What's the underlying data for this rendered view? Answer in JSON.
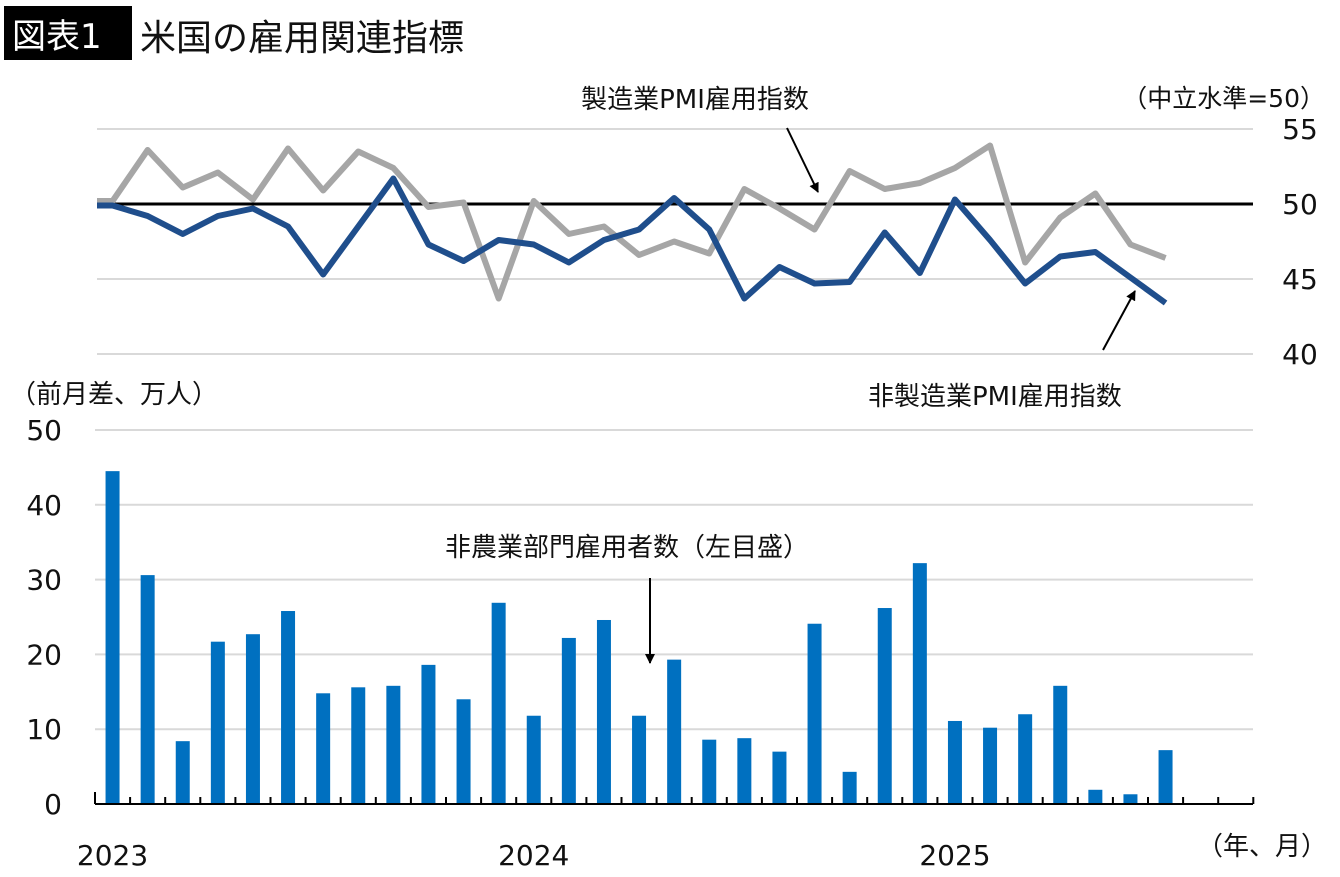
{
  "header": {
    "badge": "図表1",
    "title": "米国の雇用関連指標"
  },
  "colors": {
    "manufacturing": "#a6a6a6",
    "non_manufacturing": "#1f4e8c",
    "payrolls": "#0070c0",
    "reference_line": "#000000",
    "grid": "#d9d9d9"
  },
  "chart_data": [
    {
      "type": "line",
      "unit_label": "（中立水準=50）",
      "ylim": [
        40,
        55
      ],
      "y_ticks": [
        "55",
        "50",
        "45",
        "40"
      ],
      "y_axis_side": "right",
      "reference_line": 50,
      "grid": true,
      "x_range": [
        "2023-01",
        "2025-07"
      ],
      "series": [
        {
          "name": "製造業PMI雇用指数",
          "values": [
            50.2,
            53.6,
            51.1,
            52.1,
            50.3,
            53.7,
            50.9,
            53.5,
            52.4,
            49.8,
            50.1,
            43.7,
            50.2,
            48.0,
            48.5,
            46.6,
            47.5,
            46.7,
            51.0,
            49.7,
            48.3,
            52.2,
            51.0,
            51.4,
            52.4,
            53.9,
            46.1,
            49.1,
            50.7,
            47.3,
            46.4
          ]
        },
        {
          "name": "非製造業PMI雇用指数",
          "values": [
            49.9,
            49.2,
            48.0,
            49.2,
            49.7,
            48.5,
            45.3,
            48.5,
            51.7,
            47.3,
            46.2,
            47.6,
            47.3,
            46.1,
            47.6,
            48.3,
            50.4,
            48.3,
            43.7,
            45.8,
            44.7,
            44.8,
            48.1,
            45.4,
            50.3,
            47.6,
            44.7,
            46.5,
            46.8,
            45.1,
            43.4
          ]
        }
      ]
    },
    {
      "type": "bar",
      "unit_label": "（前月差、万人）",
      "xlabel": "（年、月）",
      "ylim": [
        0,
        50
      ],
      "y_ticks": [
        "50",
        "40",
        "30",
        "20",
        "10",
        "0"
      ],
      "grid": true,
      "x_tick_labels": [
        "2023",
        "2024",
        "2025"
      ],
      "x_range": [
        "2023-01",
        "2025-09"
      ],
      "series": [
        {
          "name": "非農業部門雇用者数（左目盛）",
          "values": [
            44.5,
            30.6,
            8.4,
            21.7,
            22.7,
            25.8,
            14.8,
            15.6,
            15.8,
            18.6,
            14.0,
            26.9,
            11.8,
            22.2,
            24.6,
            11.8,
            19.3,
            8.6,
            8.8,
            7.0,
            24.1,
            4.3,
            26.2,
            32.2,
            11.1,
            10.2,
            12.0,
            15.8,
            1.9,
            1.3,
            7.2
          ]
        }
      ]
    }
  ]
}
